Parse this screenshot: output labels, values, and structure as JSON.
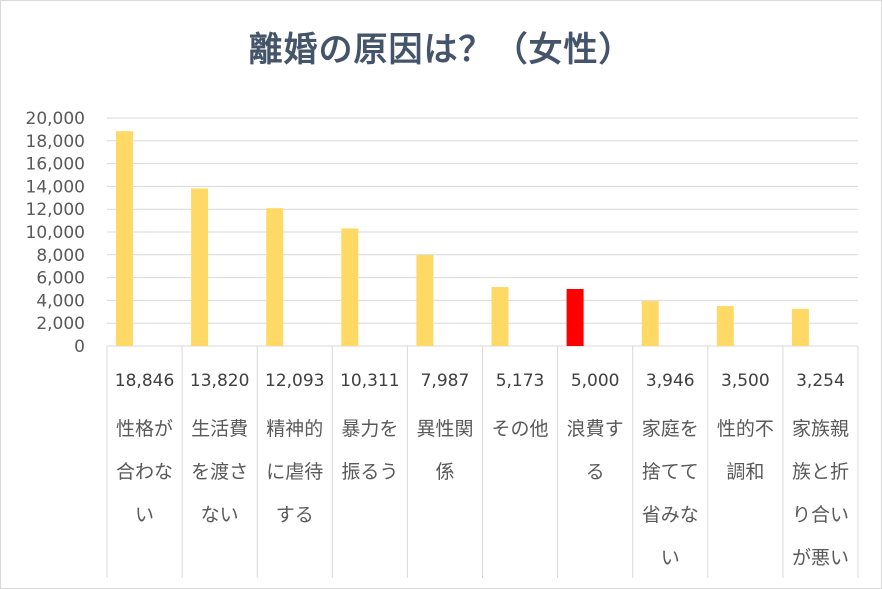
{
  "chart_data": {
    "type": "bar",
    "title": "離婚の原因は？（女性）",
    "xlabel": "",
    "ylabel": "",
    "ylim": [
      0,
      20000
    ],
    "yticks": [
      "0",
      "2,000",
      "4,000",
      "6,000",
      "8,000",
      "10,000",
      "12,000",
      "14,000",
      "16,000",
      "18,000",
      "20,000"
    ],
    "categories": [
      [
        "性格が",
        "合わな",
        "い"
      ],
      [
        "生活費",
        "を渡さ",
        "ない"
      ],
      [
        "精神的",
        "に虐待",
        "する"
      ],
      [
        "暴力を",
        "振るう"
      ],
      [
        "異性関",
        "係"
      ],
      [
        "その他"
      ],
      [
        "浪費す",
        "る"
      ],
      [
        "家庭を",
        "捨てて",
        "省みな",
        "い"
      ],
      [
        "性的不",
        "調和"
      ],
      [
        "家族親",
        "族と折",
        "り合い",
        "が悪い"
      ]
    ],
    "values": [
      18846,
      13820,
      12093,
      10311,
      7987,
      5173,
      5000,
      3946,
      3500,
      3254
    ],
    "value_labels": [
      "18,846",
      "13,820",
      "12,093",
      "10,311",
      "7,987",
      "5,173",
      "5,000",
      "3,946",
      "3,500",
      "3,254"
    ],
    "bar_colors": [
      "#ffd966",
      "#ffd966",
      "#ffd966",
      "#ffd966",
      "#ffd966",
      "#ffd966",
      "#ff0000",
      "#ffd966",
      "#ffd966",
      "#ffd966"
    ],
    "grid": true,
    "legend": "none",
    "data_table": true
  }
}
